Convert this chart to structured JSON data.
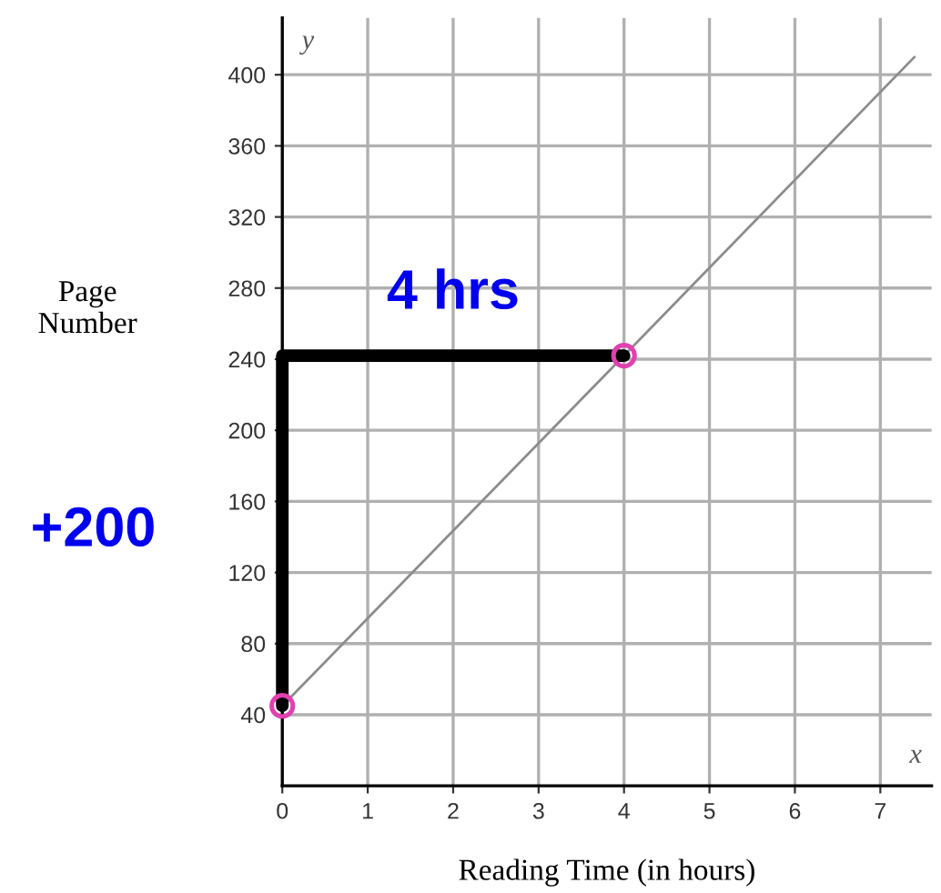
{
  "chart_data": {
    "type": "line",
    "xlabel": "Reading Time (in hours)",
    "ylabel": "Page\nNumber",
    "annotations": [
      "y",
      "x",
      {
        "text": "4 hrs",
        "x": 2,
        "y": 242
      },
      {
        "text": "+200",
        "x": 0,
        "y": 143
      }
    ],
    "series": [
      {
        "color": "#8c8c8c",
        "x": [
          0,
          4,
          7.4
        ],
        "values": [
          45,
          242,
          410
        ]
      },
      {
        "color": "#000000",
        "x": [
          0,
          0,
          4
        ],
        "values": [
          45,
          242,
          242
        ]
      },
      {
        "type": "scatter",
        "color": "#e040b0",
        "marker": "circle",
        "x": [
          0,
          4
        ],
        "values": [
          45,
          242
        ]
      }
    ],
    "xlim": [
      0,
      7.6
    ],
    "ylim": [
      0,
      432
    ],
    "xticks": [
      0,
      1,
      2,
      3,
      4,
      5,
      6,
      7
    ],
    "yticks": [
      40,
      80,
      120,
      160,
      200,
      240,
      280,
      320,
      360,
      400
    ],
    "grid": true
  }
}
